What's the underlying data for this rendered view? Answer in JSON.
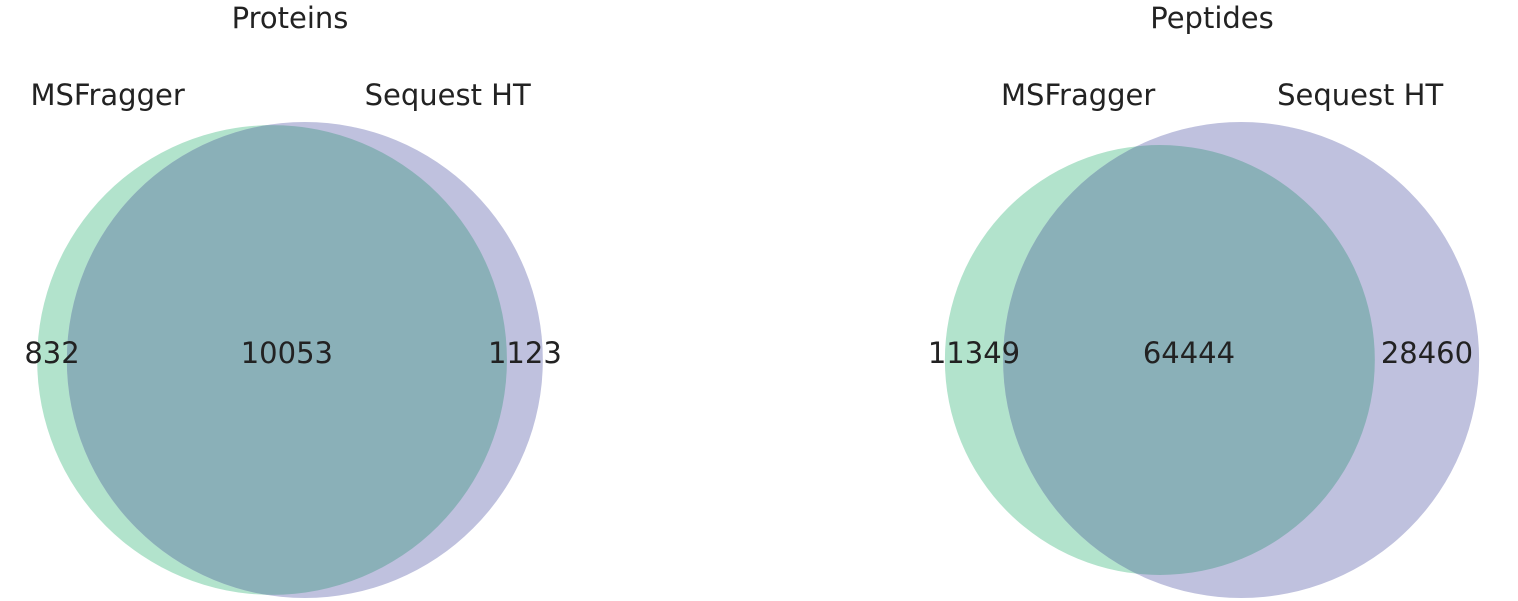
{
  "chart_data": [
    {
      "type": "venn",
      "title": "Proteins",
      "sets": [
        {
          "name": "MSFragger",
          "color": "#b2e3cc"
        },
        {
          "name": "Sequest HT",
          "color": "#bfc1de"
        }
      ],
      "overlap_color": "#8ab0b8",
      "categories": [
        "MSFragger only",
        "Both",
        "Sequest HT only"
      ],
      "values": [
        832,
        10053,
        1123
      ]
    },
    {
      "type": "venn",
      "title": "Peptides",
      "sets": [
        {
          "name": "MSFragger",
          "color": "#b2e3cc"
        },
        {
          "name": "Sequest HT",
          "color": "#bfc1de"
        }
      ],
      "overlap_color": "#8ab0b8",
      "categories": [
        "MSFragger only",
        "Both",
        "Sequest HT only"
      ],
      "values": [
        11349,
        64444,
        28460
      ]
    }
  ]
}
